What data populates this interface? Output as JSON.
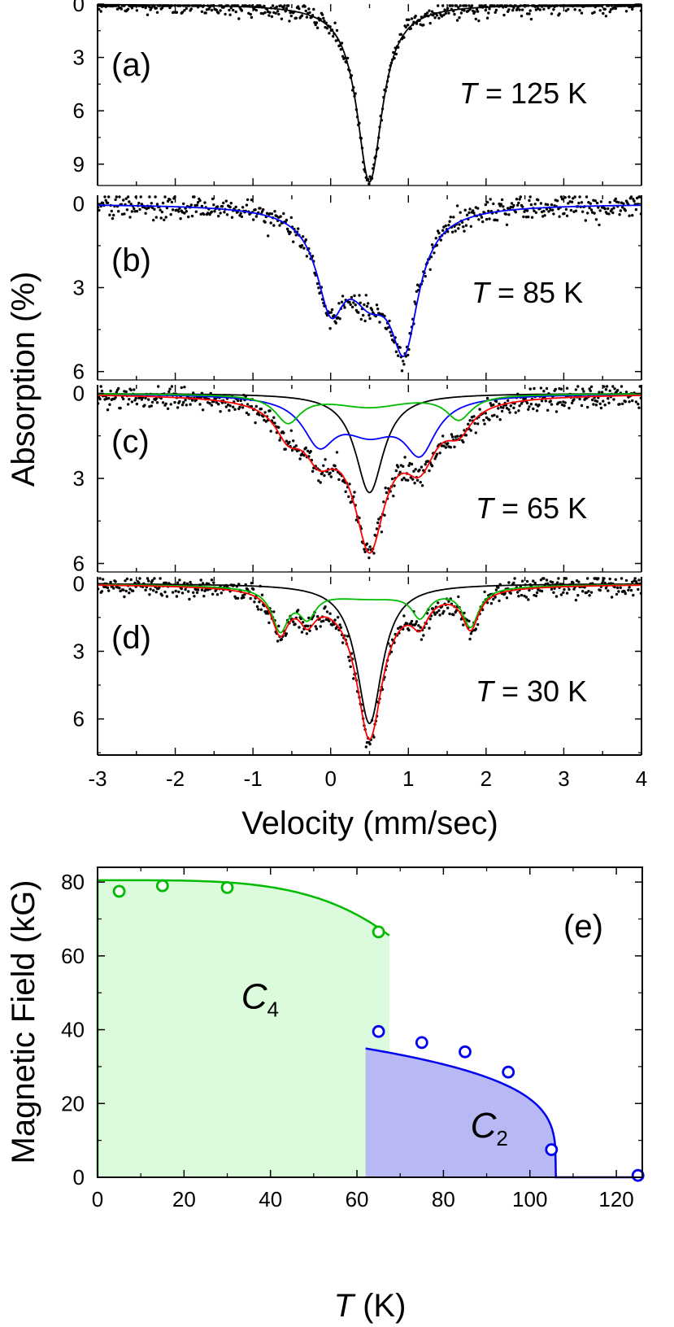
{
  "chart_data": [
    {
      "panel": "(a)",
      "type": "line",
      "temperature_label": "125 K",
      "xlim": [
        -3,
        4
      ],
      "ylim": [
        0,
        10.2
      ],
      "y_inverted": true,
      "yticks": [
        "0",
        "3",
        "6",
        "9"
      ],
      "data_points": "scattered black dots",
      "series": [
        {
          "color": "#000000",
          "peaks": [
            {
              "center": 0.5,
              "depth": 10.0,
              "width": 0.2
            }
          ]
        }
      ]
    },
    {
      "panel": "(b)",
      "type": "line",
      "temperature_label": "85 K",
      "xlim": [
        -3,
        4
      ],
      "ylim": [
        -0.3,
        6.3
      ],
      "y_inverted": true,
      "yticks": [
        "0",
        "3",
        "6"
      ],
      "data_points": "scattered black dots",
      "series": [
        {
          "color": "#0000ff",
          "peaks": [
            {
              "center": 0.0,
              "depth": 3.0,
              "width": 0.22
            },
            {
              "center": 0.5,
              "depth": 2.6,
              "width": 0.35
            },
            {
              "center": 0.95,
              "depth": 4.3,
              "width": 0.22
            }
          ]
        }
      ]
    },
    {
      "panel": "(c)",
      "type": "line",
      "temperature_label": "65 K",
      "xlim": [
        -3,
        4
      ],
      "ylim": [
        -0.3,
        6.3
      ],
      "y_inverted": true,
      "yticks": [
        "0",
        "3",
        "6"
      ],
      "data_points": "scattered black dots",
      "series": [
        {
          "color": "#000000",
          "peaks": [
            {
              "center": 0.5,
              "depth": 3.5,
              "width": 0.22
            }
          ]
        },
        {
          "color": "#0000ff",
          "peaks": [
            {
              "center": -0.15,
              "depth": 1.5,
              "width": 0.25
            },
            {
              "center": 0.5,
              "depth": 1.2,
              "width": 0.45
            },
            {
              "center": 1.15,
              "depth": 1.8,
              "width": 0.25
            }
          ]
        },
        {
          "color": "#00bb00",
          "peaks": [
            {
              "center": -0.55,
              "depth": 0.95,
              "width": 0.2
            },
            {
              "center": 0.5,
              "depth": 0.45,
              "width": 0.6
            },
            {
              "center": 1.65,
              "depth": 0.85,
              "width": 0.2
            }
          ]
        },
        {
          "color": "#ff0000",
          "sum_of": [
            0,
            1,
            2
          ]
        }
      ]
    },
    {
      "panel": "(d)",
      "type": "line",
      "temperature_label": "30 K",
      "xlim": [
        -3,
        4
      ],
      "ylim": [
        -0.3,
        7.6
      ],
      "y_inverted": true,
      "yticks": [
        "0",
        "3",
        "6"
      ],
      "data_points": "scattered black dots",
      "series": [
        {
          "color": "#000000",
          "peaks": [
            {
              "center": 0.5,
              "depth": 6.2,
              "width": 0.2
            }
          ]
        },
        {
          "color": "#00bb00",
          "peaks": [
            {
              "center": -0.65,
              "depth": 1.8,
              "width": 0.13
            },
            {
              "center": -0.3,
              "depth": 1.1,
              "width": 0.13
            },
            {
              "center": 0.5,
              "depth": 0.6,
              "width": 0.9
            },
            {
              "center": 1.15,
              "depth": 1.1,
              "width": 0.13
            },
            {
              "center": 1.8,
              "depth": 1.7,
              "width": 0.13
            }
          ]
        },
        {
          "color": "#ff0000",
          "sum_of": [
            0,
            1
          ]
        }
      ]
    },
    {
      "panel": "(e)",
      "type": "scatter",
      "xlabel_italic": "T",
      "xlabel_rest": " (K)",
      "ylabel": "Magnetic Field (kG)",
      "xlim": [
        0,
        126
      ],
      "ylim": [
        0,
        84
      ],
      "xticks": [
        0,
        20,
        40,
        60,
        80,
        100,
        120
      ],
      "yticks": [
        0,
        20,
        40,
        60,
        80
      ],
      "series": [
        {
          "region": "C4",
          "color": "#00bb00",
          "fill": "#dcfadc",
          "x": [
            5,
            15,
            30,
            65
          ],
          "y": [
            77.5,
            79.0,
            78.5,
            66.5
          ],
          "fit": {
            "top": 80.5,
            "end_x": 67.5,
            "end_y": 65.5
          }
        },
        {
          "region": "C2",
          "color": "#0000ee",
          "fill": "#b8b8f5",
          "x": [
            65,
            75,
            85,
            95,
            105,
            125
          ],
          "y": [
            39.5,
            36.5,
            34.0,
            28.5,
            7.5,
            0.5
          ],
          "fit": {
            "Tc": 106,
            "M0": 43.5,
            "beta": 0.25,
            "start_x": 62
          }
        }
      ],
      "region_labels": [
        {
          "letter": "C",
          "sub": "4",
          "x": 37,
          "y": 48
        },
        {
          "letter": "C",
          "sub": "2",
          "x": 90,
          "y": 13
        }
      ]
    }
  ],
  "shared": {
    "xlabel": "Velocity (mm/sec)",
    "ylabel": "Absorption  (%)",
    "xticks": [
      "-3",
      "-2",
      "-1",
      "0",
      "1",
      "2",
      "3",
      "4"
    ],
    "temperature_prefix": "T",
    "temperature_equals": " = "
  }
}
